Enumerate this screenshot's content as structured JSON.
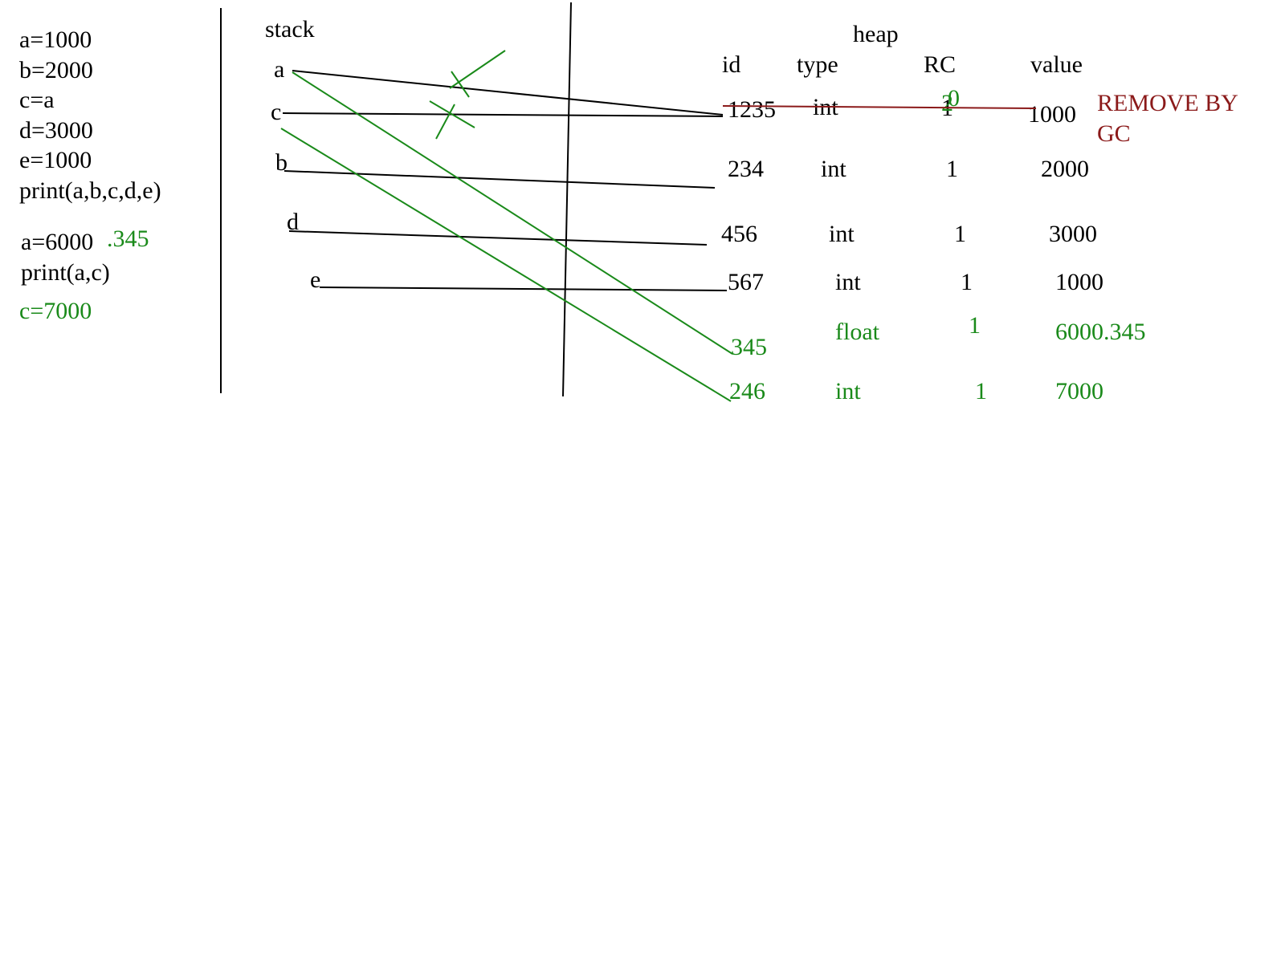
{
  "colors": {
    "ink": "#000000",
    "green": "#1a8a1a",
    "red": "#8b1a1a"
  },
  "code": {
    "lines": [
      "a=1000",
      "b=2000",
      "c=a",
      "d=3000",
      "e=1000",
      "print(a,b,c,d,e)"
    ],
    "a_reassign": "a=6000",
    "a_reassign_suffix": ".345",
    "print2": "print(a,c)",
    "c_reassign": "c=7000"
  },
  "stack": {
    "title": "stack",
    "vars": [
      "a",
      "c",
      "b",
      "d",
      "e"
    ]
  },
  "heap": {
    "title": "heap",
    "headers": {
      "id": "id",
      "type": "type",
      "rc": "RC",
      "value": "value"
    },
    "rows": [
      {
        "id": "1235",
        "type": "int",
        "rc": "1",
        "value": "1000"
      },
      {
        "id": "234",
        "type": "int",
        "rc": "1",
        "value": "2000"
      },
      {
        "id": "456",
        "type": "int",
        "rc": "1",
        "value": "3000"
      },
      {
        "id": "567",
        "type": "int",
        "rc": "1",
        "value": "1000"
      },
      {
        "id": "345",
        "type": "float",
        "rc": "1",
        "value": "6000.345"
      },
      {
        "id": "246",
        "type": "int",
        "rc": "1",
        "value": "7000"
      }
    ],
    "rc_update_1": "2",
    "rc_update_2": "0"
  },
  "gc_note": {
    "line1": "REMOVE  BY",
    "line2": "GC"
  }
}
